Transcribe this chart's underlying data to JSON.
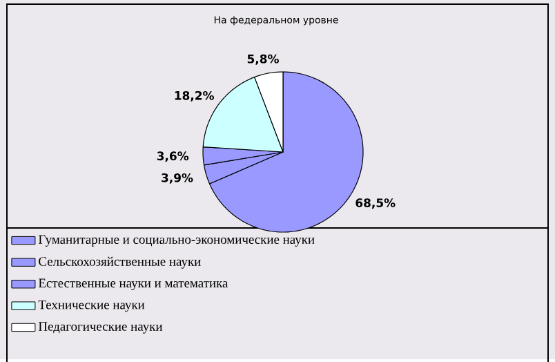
{
  "chart_data": {
    "type": "pie",
    "title": "На федеральном уровне",
    "categories": [
      "Гуманитарные и социально-экономические науки",
      "Сельскохозяйственные науки",
      "Естественные науки и математика",
      "Технические науки",
      "Педагогические науки"
    ],
    "values": [
      68.5,
      3.9,
      3.6,
      18.2,
      5.8
    ],
    "value_labels": [
      "68,5%",
      "3,9%",
      "3,6%",
      "18,2%",
      "5,8%"
    ],
    "colors": [
      "#9999ff",
      "#9999ff",
      "#9999ff",
      "#ccffff",
      "#ffffff"
    ],
    "legend": "bottom"
  }
}
